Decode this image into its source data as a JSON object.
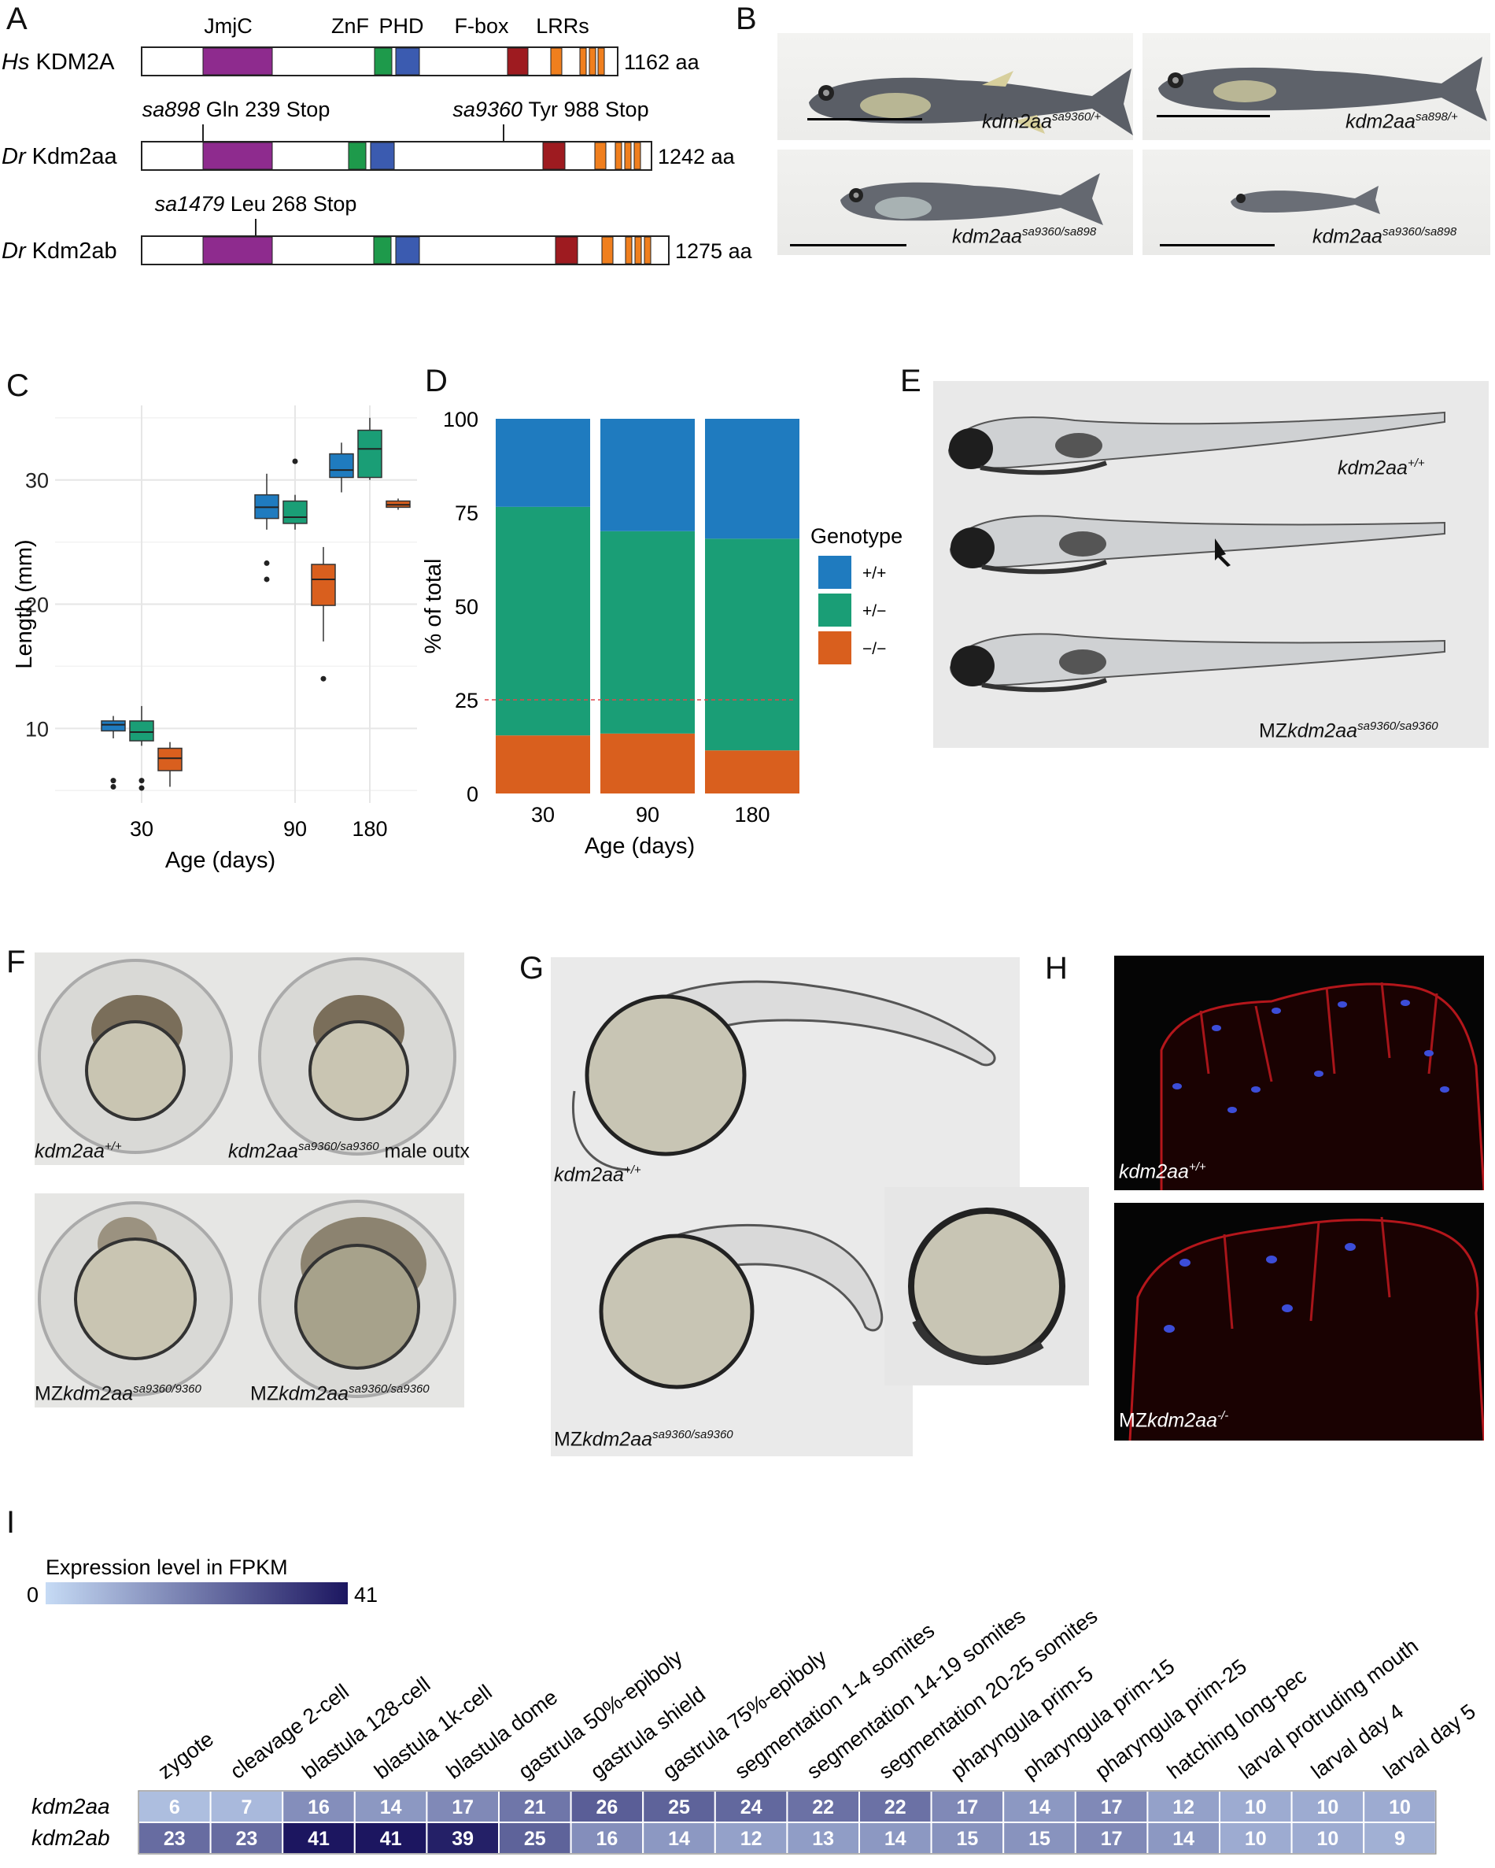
{
  "panels": {
    "A": {
      "letter": "A",
      "domain_labels": [
        "JmjC",
        "ZnF",
        "PHD",
        "F-box",
        "LRRs"
      ],
      "proteins": [
        {
          "species": "Hs",
          "name": "KDM2A",
          "length": "1162 aa"
        },
        {
          "species": "Dr",
          "name": "Kdm2aa",
          "length": "1242 aa",
          "mutations": [
            {
              "allele": "sa898",
              "change": "Gln 239 Stop"
            },
            {
              "allele": "sa9360",
              "change": "Tyr 988 Stop"
            }
          ]
        },
        {
          "species": "Dr",
          "name": "Kdm2ab",
          "length": "1275 aa",
          "mutations": [
            {
              "allele": "sa1479",
              "change": "Leu 268 Stop"
            }
          ]
        }
      ],
      "domain_colors": {
        "JmjC": "#8e2b8e",
        "ZnF": "#1e9a4b",
        "PHD": "#3b5bb0",
        "F-box": "#9e1b20",
        "LRRs": "#f07f1e"
      }
    },
    "B": {
      "letter": "B",
      "genotypes": [
        {
          "gene": "kdm2aa",
          "sup": "sa9360/+"
        },
        {
          "gene": "kdm2aa",
          "sup": "sa898/+"
        },
        {
          "gene": "kdm2aa",
          "sup": "sa9360/sa898"
        },
        {
          "gene": "kdm2aa",
          "sup": "sa9360/sa898"
        }
      ]
    },
    "C": {
      "letter": "C"
    },
    "D": {
      "letter": "D"
    },
    "E": {
      "letter": "E",
      "labels": [
        {
          "prefix": "",
          "gene": "kdm2aa",
          "sup": "+/+"
        },
        {
          "prefix": "MZ",
          "gene": "kdm2aa",
          "sup": "sa9360/sa9360"
        }
      ]
    },
    "F": {
      "letter": "F",
      "labels": [
        {
          "prefix": "",
          "gene": "kdm2aa",
          "sup": "+/+",
          "suffix": ""
        },
        {
          "prefix": "",
          "gene": "kdm2aa",
          "sup": "sa9360/sa9360",
          "suffix": " male outx"
        },
        {
          "prefix": "MZ",
          "gene": "kdm2aa",
          "sup": "sa9360/9360",
          "suffix": ""
        },
        {
          "prefix": "MZ",
          "gene": "kdm2aa",
          "sup": "sa9360/sa9360",
          "suffix": ""
        }
      ]
    },
    "G": {
      "letter": "G",
      "labels": [
        {
          "prefix": "",
          "gene": "kdm2aa",
          "sup": "+/+"
        },
        {
          "prefix": "MZ",
          "gene": "kdm2aa",
          "sup": "sa9360/sa9360"
        }
      ]
    },
    "H": {
      "letter": "H",
      "labels": [
        {
          "prefix": "",
          "gene": "kdm2aa",
          "sup": "+/+"
        },
        {
          "prefix": "MZ",
          "gene": "kdm2aa",
          "sup": "-/-"
        }
      ]
    },
    "I": {
      "letter": "I"
    }
  },
  "chart_data": [
    {
      "panel": "C",
      "type": "box",
      "xlabel": "Age (days)",
      "ylabel": "Length (mm)",
      "categories": [
        "30",
        "90",
        "180"
      ],
      "yticks": [
        10,
        20,
        30
      ],
      "ylim": [
        4,
        36
      ],
      "grid": true,
      "series": [
        {
          "name": "+/+",
          "color": "#1f7bbf",
          "boxes": [
            {
              "min": 9.2,
              "q1": 9.8,
              "median": 10.3,
              "q3": 10.6,
              "max": 11.0,
              "outliers": [
                5.8,
                5.3
              ]
            },
            {
              "min": 26.0,
              "q1": 26.9,
              "median": 27.8,
              "q3": 28.8,
              "max": 30.5,
              "outliers": [
                23.3,
                22.0
              ]
            },
            {
              "min": 29.0,
              "q1": 30.2,
              "median": 30.8,
              "q3": 32.1,
              "max": 33.0,
              "outliers": []
            }
          ]
        },
        {
          "name": "+/-",
          "color": "#1a9e76",
          "boxes": [
            {
              "min": 8.6,
              "q1": 9.0,
              "median": 9.7,
              "q3": 10.6,
              "max": 11.8,
              "outliers": [
                5.8,
                5.2
              ]
            },
            {
              "min": 26.0,
              "q1": 26.5,
              "median": 27.0,
              "q3": 28.3,
              "max": 28.8,
              "outliers": [
                31.5
              ]
            },
            {
              "min": 30.0,
              "q1": 30.2,
              "median": 32.5,
              "q3": 34.0,
              "max": 35.0,
              "outliers": []
            }
          ]
        },
        {
          "name": "-/-",
          "color": "#d95f1e",
          "boxes": [
            {
              "min": 5.3,
              "q1": 6.6,
              "median": 7.6,
              "q3": 8.4,
              "max": 8.9,
              "outliers": []
            },
            {
              "min": 17.0,
              "q1": 19.9,
              "median": 22.0,
              "q3": 23.2,
              "max": 24.6,
              "outliers": [
                14.0
              ]
            },
            {
              "min": 27.6,
              "q1": 27.8,
              "median": 28.0,
              "q3": 28.3,
              "max": 28.5,
              "outliers": []
            }
          ]
        }
      ]
    },
    {
      "panel": "D",
      "type": "bar",
      "stacked": true,
      "xlabel": "Age (days)",
      "ylabel": "% of total",
      "categories": [
        "30",
        "90",
        "180"
      ],
      "yticks": [
        0,
        25,
        50,
        75,
        100
      ],
      "ylim": [
        0,
        100
      ],
      "reference_line": 25,
      "legend_title": "Genotype",
      "legend_position": "right",
      "series": [
        {
          "name": "−/−",
          "color": "#d95f1e",
          "values": [
            15.5,
            16,
            11.5
          ]
        },
        {
          "name": "+/−",
          "color": "#1a9e76",
          "values": [
            61,
            54,
            56.5
          ]
        },
        {
          "name": "+/+",
          "color": "#1f7bbf",
          "values": [
            23.5,
            30,
            32
          ]
        }
      ]
    },
    {
      "panel": "I",
      "type": "heatmap",
      "legend_title": "Expression level in FPKM",
      "scale_min": "0",
      "scale_max": "41",
      "color_low": "#c6dbf5",
      "color_high": "#1c1660",
      "columns": [
        "zygote",
        "cleavage 2-cell",
        "blastula 128-cell",
        "blastula 1k-cell",
        "blastula dome",
        "gastrula 50%-epiboly",
        "gastrula shield",
        "gastrula 75%-epiboly",
        "segmentation 1-4 somites",
        "segmentation 14-19 somites",
        "segmentation 20-25 somites",
        "pharyngula prim-5",
        "pharyngula prim-15",
        "pharyngula prim-25",
        "hatching long-pec",
        "larval protruding mouth",
        "larval day 4",
        "larval day 5"
      ],
      "rows": [
        {
          "name": "kdm2aa",
          "values": [
            6,
            7,
            16,
            14,
            17,
            21,
            26,
            25,
            24,
            22,
            22,
            17,
            14,
            17,
            12,
            10,
            10,
            10
          ]
        },
        {
          "name": "kdm2ab",
          "values": [
            23,
            23,
            41,
            41,
            39,
            25,
            16,
            14,
            12,
            13,
            14,
            15,
            15,
            17,
            14,
            10,
            10,
            9
          ]
        }
      ]
    }
  ]
}
